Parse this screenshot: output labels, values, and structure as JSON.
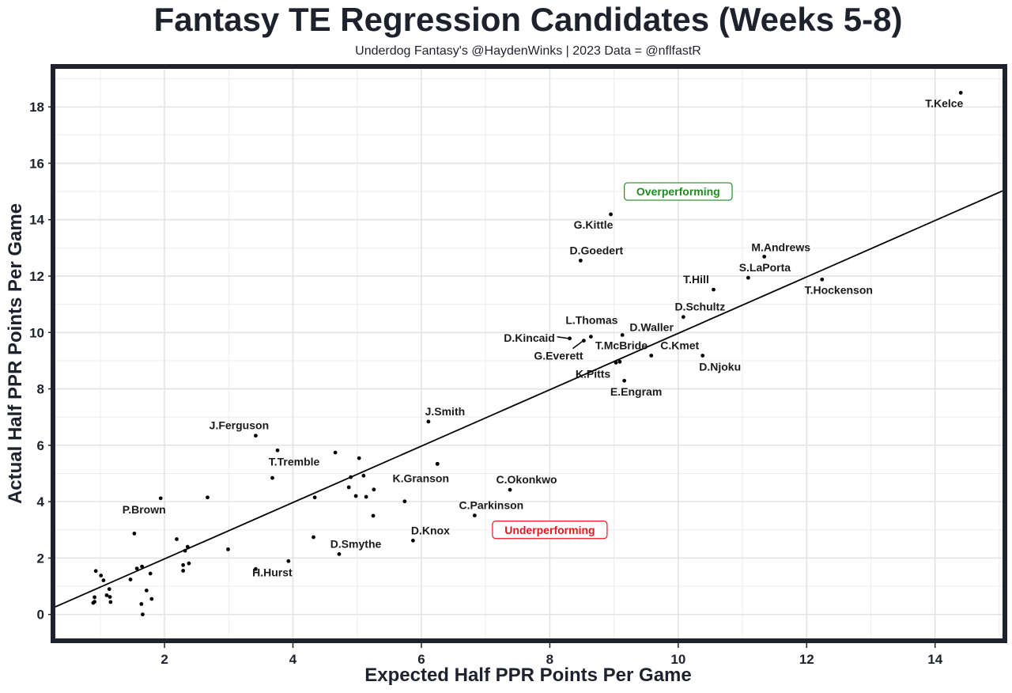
{
  "chart_data": {
    "type": "scatter",
    "title": "Fantasy TE Regression Candidates (Weeks 5-8)",
    "subtitle": "Underdog Fantasy's @HaydenWinks | 2023 Data = @nflfastR",
    "xlabel": "Expected Half PPR Points Per Game",
    "ylabel": "Actual Half PPR Points Per Game",
    "xlim": [
      0.3,
      15.05
    ],
    "ylim": [
      -0.85,
      19.35
    ],
    "xticks": [
      2,
      4,
      6,
      8,
      10,
      12,
      14
    ],
    "yticks": [
      0,
      2,
      4,
      6,
      8,
      10,
      12,
      14,
      16,
      18
    ],
    "grid": true,
    "trend_line": {
      "type": "linear",
      "slope": 1.0,
      "intercept": -0.03
    },
    "annotations": [
      {
        "text": "Overperforming",
        "x": 10.0,
        "y": 15.0,
        "color": "#1e8a1e"
      },
      {
        "text": "Underperforming",
        "x": 8.0,
        "y": 3.0,
        "color": "#e8141e"
      }
    ],
    "labeled_points": [
      {
        "name": "T.Kelce",
        "x": 14.4,
        "y": 18.5
      },
      {
        "name": "G.Kittle",
        "x": 8.95,
        "y": 14.19
      },
      {
        "name": "D.Goedert",
        "x": 8.48,
        "y": 12.55
      },
      {
        "name": "M.Andrews",
        "x": 11.34,
        "y": 12.69
      },
      {
        "name": "S.LaPorta",
        "x": 11.09,
        "y": 11.94
      },
      {
        "name": "T.Hockenson",
        "x": 12.24,
        "y": 11.88
      },
      {
        "name": "T.Hill",
        "x": 10.55,
        "y": 11.52
      },
      {
        "name": "D.Schultz",
        "x": 10.08,
        "y": 10.55
      },
      {
        "name": "D.Waller",
        "x": 9.13,
        "y": 9.91
      },
      {
        "name": "L.Thomas",
        "x": 8.64,
        "y": 9.85
      },
      {
        "name": "D.Kincaid",
        "x": 8.31,
        "y": 9.79
      },
      {
        "name": "G.Everett",
        "x": 8.53,
        "y": 9.71
      },
      {
        "name": "C.Kmet",
        "x": 9.58,
        "y": 9.18
      },
      {
        "name": "D.Njoku",
        "x": 10.38,
        "y": 9.18
      },
      {
        "name": "T.McBride",
        "x": 9.09,
        "y": 8.96
      },
      {
        "name": "K.Pitts",
        "x": 9.03,
        "y": 8.93
      },
      {
        "name": "E.Engram",
        "x": 9.16,
        "y": 8.29
      },
      {
        "name": "J.Smith",
        "x": 6.11,
        "y": 6.84
      },
      {
        "name": "J.Ferguson",
        "x": 3.42,
        "y": 6.34
      },
      {
        "name": "T.Tremble",
        "x": 3.76,
        "y": 5.82
      },
      {
        "name": "K.Granson",
        "x": 6.25,
        "y": 5.34
      },
      {
        "name": "C.Okonkwo",
        "x": 7.38,
        "y": 4.42
      },
      {
        "name": "C.Parkinson",
        "x": 6.83,
        "y": 3.51
      },
      {
        "name": "D.Knox",
        "x": 5.87,
        "y": 2.62
      },
      {
        "name": "D.Smythe",
        "x": 4.72,
        "y": 2.14
      },
      {
        "name": "P.Brown",
        "x": 1.94,
        "y": 4.12
      },
      {
        "name": "H.Hurst",
        "x": 3.42,
        "y": 1.61
      }
    ],
    "unlabeled_points": [
      {
        "x": 3.68,
        "y": 4.84
      },
      {
        "x": 4.66,
        "y": 5.74
      },
      {
        "x": 5.03,
        "y": 5.54
      },
      {
        "x": 4.9,
        "y": 4.87
      },
      {
        "x": 5.1,
        "y": 4.92
      },
      {
        "x": 4.87,
        "y": 4.51
      },
      {
        "x": 5.26,
        "y": 4.43
      },
      {
        "x": 4.98,
        "y": 4.2
      },
      {
        "x": 5.14,
        "y": 4.17
      },
      {
        "x": 5.74,
        "y": 4.01
      },
      {
        "x": 5.25,
        "y": 3.5
      },
      {
        "x": 4.34,
        "y": 4.15
      },
      {
        "x": 2.67,
        "y": 4.15
      },
      {
        "x": 6.25,
        "y": 5.34
      },
      {
        "x": 2.99,
        "y": 2.31
      },
      {
        "x": 3.93,
        "y": 1.89
      },
      {
        "x": 4.32,
        "y": 2.74
      },
      {
        "x": 1.53,
        "y": 2.87
      },
      {
        "x": 2.19,
        "y": 2.67
      },
      {
        "x": 2.36,
        "y": 2.4
      },
      {
        "x": 2.32,
        "y": 2.26
      },
      {
        "x": 2.38,
        "y": 1.81
      },
      {
        "x": 2.29,
        "y": 1.75
      },
      {
        "x": 2.29,
        "y": 1.55
      },
      {
        "x": 1.57,
        "y": 1.63
      },
      {
        "x": 1.65,
        "y": 1.7
      },
      {
        "x": 1.78,
        "y": 1.45
      },
      {
        "x": 1.47,
        "y": 1.24
      },
      {
        "x": 1.72,
        "y": 0.85
      },
      {
        "x": 1.8,
        "y": 0.55
      },
      {
        "x": 1.64,
        "y": 0.37
      },
      {
        "x": 1.66,
        "y": 0.0
      },
      {
        "x": 0.93,
        "y": 1.54
      },
      {
        "x": 1.01,
        "y": 1.38
      },
      {
        "x": 1.05,
        "y": 1.21
      },
      {
        "x": 1.14,
        "y": 0.9
      },
      {
        "x": 1.1,
        "y": 0.68
      },
      {
        "x": 1.15,
        "y": 0.62
      },
      {
        "x": 1.16,
        "y": 0.44
      },
      {
        "x": 0.91,
        "y": 0.61
      },
      {
        "x": 0.89,
        "y": 0.41
      },
      {
        "x": 0.91,
        "y": 0.45
      }
    ]
  }
}
